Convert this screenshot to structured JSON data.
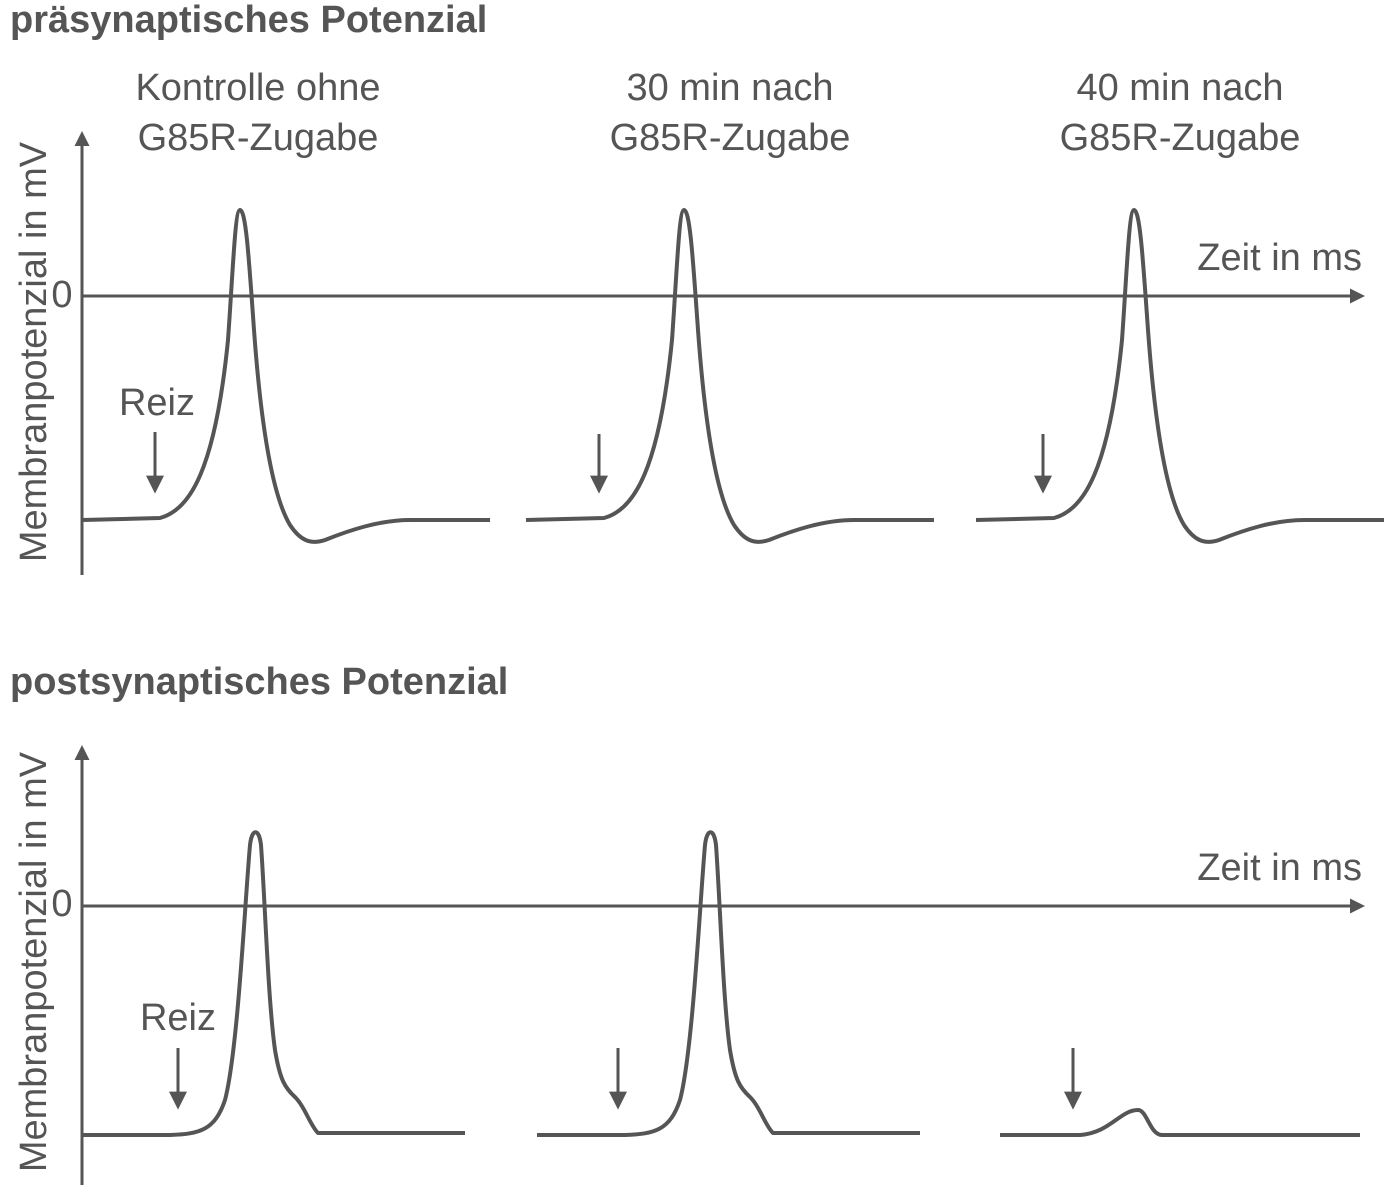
{
  "top": {
    "title": "präsynaptisches Potenzial",
    "columns": [
      [
        "Kontrolle ohne",
        "G85R-Zugabe"
      ],
      [
        "30 min nach",
        "G85R-Zugabe"
      ],
      [
        "40 min nach",
        "G85R-Zugabe"
      ]
    ],
    "y_axis_label": "Membranpotenzial in mV",
    "zero_label": "0",
    "x_axis_label": "Zeit in ms",
    "stimulus_label": "Reiz"
  },
  "bottom": {
    "title": "postsynaptisches Potenzial",
    "y_axis_label": "Membranpotenzial in mV",
    "zero_label": "0",
    "x_axis_label": "Zeit in ms",
    "stimulus_label": "Reiz"
  }
}
